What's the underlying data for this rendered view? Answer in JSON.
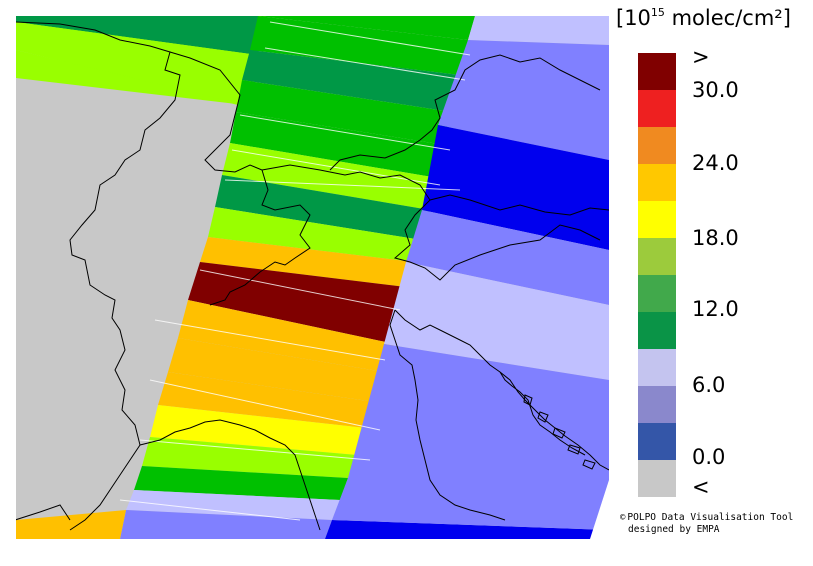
{
  "unit": {
    "base": "[10",
    "exponent": "15",
    "rest": " molec/cm²]"
  },
  "legend": {
    "labels": {
      "gt": ">",
      "v30": "30.0",
      "v24": "24.0",
      "v18": "18.0",
      "v12": "12.0",
      "v6": "6.0",
      "v0": "0.0",
      "lt": "<"
    },
    "colors": [
      "#800000",
      "#ee2020",
      "#f08a20",
      "#ffc800",
      "#ffff00",
      "#9ccb3c",
      "#41a94b",
      "#0a9447",
      "#c4c4ef",
      "#8a88cc",
      "#3456a8",
      "#c8c8c8"
    ]
  },
  "credit": {
    "line1": "POLPO Data Visualisation Tool",
    "line2": "designed by EMPA",
    "symbol": "©"
  },
  "palette": {
    "no_data": "#c8c8c8",
    "dark_red": "#800000",
    "orange": "#ffc000",
    "yellow": "#ffff00",
    "yellow_green": "#99ff00",
    "green": "#00c000",
    "dark_green": "#009846",
    "lavender": "#c0c0ff",
    "periwinkle": "#8080ff",
    "blue": "#0000ee"
  }
}
